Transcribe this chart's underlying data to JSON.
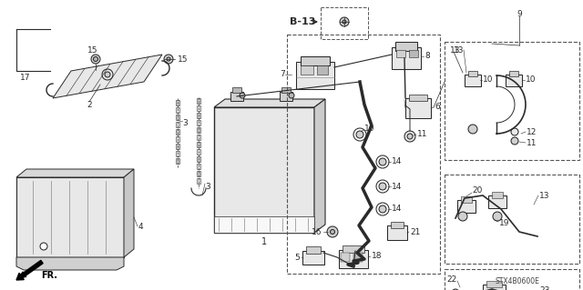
{
  "background_color": "#ffffff",
  "diagram_color": "#1a1a1a",
  "watermark": "STX4B0600E",
  "fr_label": "FR.",
  "ref_label": "B-13",
  "figsize": [
    6.4,
    3.19
  ],
  "dpi": 100,
  "line_color": "#2a2a2a",
  "gray_fill": "#d0d0d0",
  "light_fill": "#e8e8e8",
  "mid_fill": "#b8b8b8"
}
